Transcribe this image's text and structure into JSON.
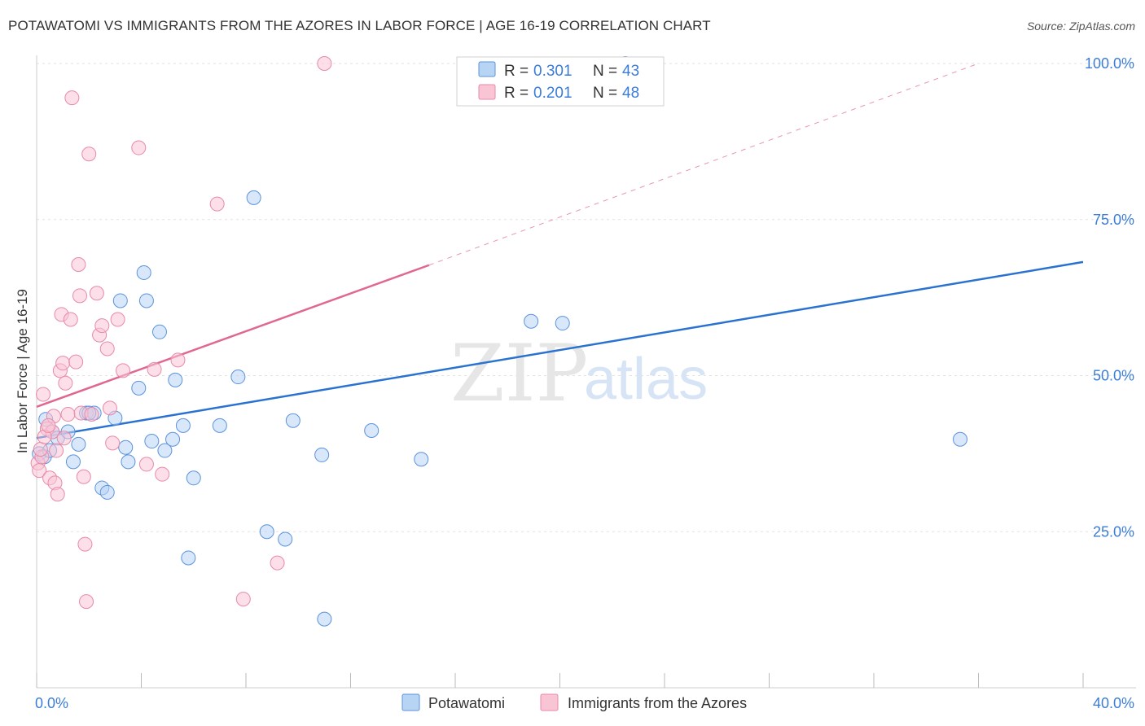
{
  "header": {
    "title": "POTAWATOMI VS IMMIGRANTS FROM THE AZORES IN LABOR FORCE | AGE 16-19 CORRELATION CHART",
    "source": "Source: ZipAtlas.com"
  },
  "watermark": {
    "zip": "ZIP",
    "atlas": "atlas"
  },
  "legend": {
    "r_label": "R = ",
    "n_label": "N = ",
    "series": [
      {
        "r": "0.301",
        "n": "43"
      },
      {
        "r": "0.201",
        "n": "48"
      }
    ]
  },
  "colors": {
    "blue_fill": "#b8d4f4",
    "blue_stroke": "#5b93dc",
    "blue_line": "#2a72d0",
    "pink_fill": "#f9c5d5",
    "pink_stroke": "#e88aa8",
    "pink_line": "#e06890"
  },
  "chart_data": {
    "type": "scatter",
    "title": "POTAWATOMI VS IMMIGRANTS FROM THE AZORES IN LABOR FORCE | AGE 16-19 CORRELATION CHART",
    "xlabel": "",
    "ylabel": "In Labor Force | Age 16-19",
    "xlim": [
      0,
      40
    ],
    "ylim": [
      0,
      100
    ],
    "x_tick_labels": [
      "0.0%",
      "40.0%"
    ],
    "y_ticks": [
      25,
      50,
      75,
      100
    ],
    "y_tick_labels": [
      "25.0%",
      "50.0%",
      "75.0%",
      "100.0%"
    ],
    "grid": true,
    "series": [
      {
        "name": "Potawatomi",
        "r": 0.301,
        "n": 43,
        "points": [
          [
            0.1,
            37.5
          ],
          [
            0.3,
            37.0
          ],
          [
            0.35,
            43.0
          ],
          [
            0.6,
            41.0
          ],
          [
            0.8,
            40.0
          ],
          [
            1.2,
            41.0
          ],
          [
            1.4,
            36.2
          ],
          [
            1.6,
            39.0
          ],
          [
            1.9,
            44.0
          ],
          [
            2.2,
            44.0
          ],
          [
            2.5,
            32.0
          ],
          [
            2.7,
            31.3
          ],
          [
            3.0,
            43.2
          ],
          [
            3.2,
            62.0
          ],
          [
            3.4,
            38.5
          ],
          [
            3.5,
            36.2
          ],
          [
            3.9,
            48.0
          ],
          [
            4.1,
            66.5
          ],
          [
            4.2,
            62.0
          ],
          [
            4.4,
            39.5
          ],
          [
            4.7,
            57.0
          ],
          [
            4.9,
            38.0
          ],
          [
            5.2,
            39.8
          ],
          [
            5.3,
            49.3
          ],
          [
            5.6,
            42.0
          ],
          [
            5.8,
            20.8
          ],
          [
            6.0,
            33.6
          ],
          [
            7.0,
            42.0
          ],
          [
            7.7,
            49.8
          ],
          [
            8.3,
            78.5
          ],
          [
            8.8,
            25.0
          ],
          [
            9.5,
            23.8
          ],
          [
            9.8,
            42.8
          ],
          [
            10.9,
            37.3
          ],
          [
            11.0,
            11.0
          ],
          [
            12.8,
            41.2
          ],
          [
            14.7,
            36.6
          ],
          [
            18.9,
            58.7
          ],
          [
            20.1,
            58.4
          ],
          [
            35.3,
            39.8
          ],
          [
            22.5,
            100.0
          ],
          [
            2.0,
            44.0
          ],
          [
            0.5,
            38.0
          ]
        ]
      },
      {
        "name": "Immigrants from the Azores",
        "r": 0.201,
        "n": 48,
        "points": [
          [
            0.05,
            36.0
          ],
          [
            0.1,
            34.8
          ],
          [
            0.2,
            37.0
          ],
          [
            0.25,
            47.0
          ],
          [
            0.4,
            41.5
          ],
          [
            0.5,
            33.6
          ],
          [
            0.6,
            41.0
          ],
          [
            0.7,
            32.8
          ],
          [
            0.75,
            38.0
          ],
          [
            0.8,
            31.0
          ],
          [
            0.9,
            50.8
          ],
          [
            0.95,
            59.8
          ],
          [
            1.0,
            52.0
          ],
          [
            1.1,
            48.8
          ],
          [
            1.2,
            43.8
          ],
          [
            1.3,
            59.0
          ],
          [
            1.35,
            94.5
          ],
          [
            1.5,
            52.2
          ],
          [
            1.6,
            67.8
          ],
          [
            1.65,
            62.8
          ],
          [
            1.7,
            44.0
          ],
          [
            1.8,
            33.8
          ],
          [
            1.85,
            23.0
          ],
          [
            1.9,
            13.8
          ],
          [
            2.0,
            85.5
          ],
          [
            2.1,
            43.8
          ],
          [
            2.3,
            63.2
          ],
          [
            2.4,
            56.5
          ],
          [
            2.5,
            58.0
          ],
          [
            2.7,
            54.3
          ],
          [
            2.8,
            44.8
          ],
          [
            2.9,
            39.2
          ],
          [
            3.1,
            59.0
          ],
          [
            3.3,
            50.8
          ],
          [
            3.9,
            86.5
          ],
          [
            4.2,
            35.8
          ],
          [
            4.5,
            51.0
          ],
          [
            4.8,
            34.2
          ],
          [
            5.4,
            52.5
          ],
          [
            6.9,
            77.5
          ],
          [
            7.9,
            14.2
          ],
          [
            9.2,
            20.0
          ],
          [
            11.0,
            100.0
          ],
          [
            0.15,
            38.2
          ],
          [
            0.3,
            40.2
          ],
          [
            0.65,
            43.5
          ],
          [
            1.05,
            40.0
          ],
          [
            0.45,
            42.0
          ]
        ]
      }
    ],
    "trendlines": [
      {
        "series": "Potawatomi",
        "x": [
          0,
          40
        ],
        "y": [
          40.0,
          68.2
        ],
        "style": "solid"
      },
      {
        "series": "Immigrants from the Azores",
        "x": [
          0,
          15
        ],
        "y": [
          45.0,
          67.7
        ],
        "style": "solid"
      },
      {
        "series": "Immigrants from the Azores",
        "x": [
          15,
          36
        ],
        "y": [
          67.7,
          100.0
        ],
        "style": "dashed"
      }
    ]
  },
  "bottom_legend": {
    "items": [
      "Potawatomi",
      "Immigrants from the Azores"
    ]
  }
}
